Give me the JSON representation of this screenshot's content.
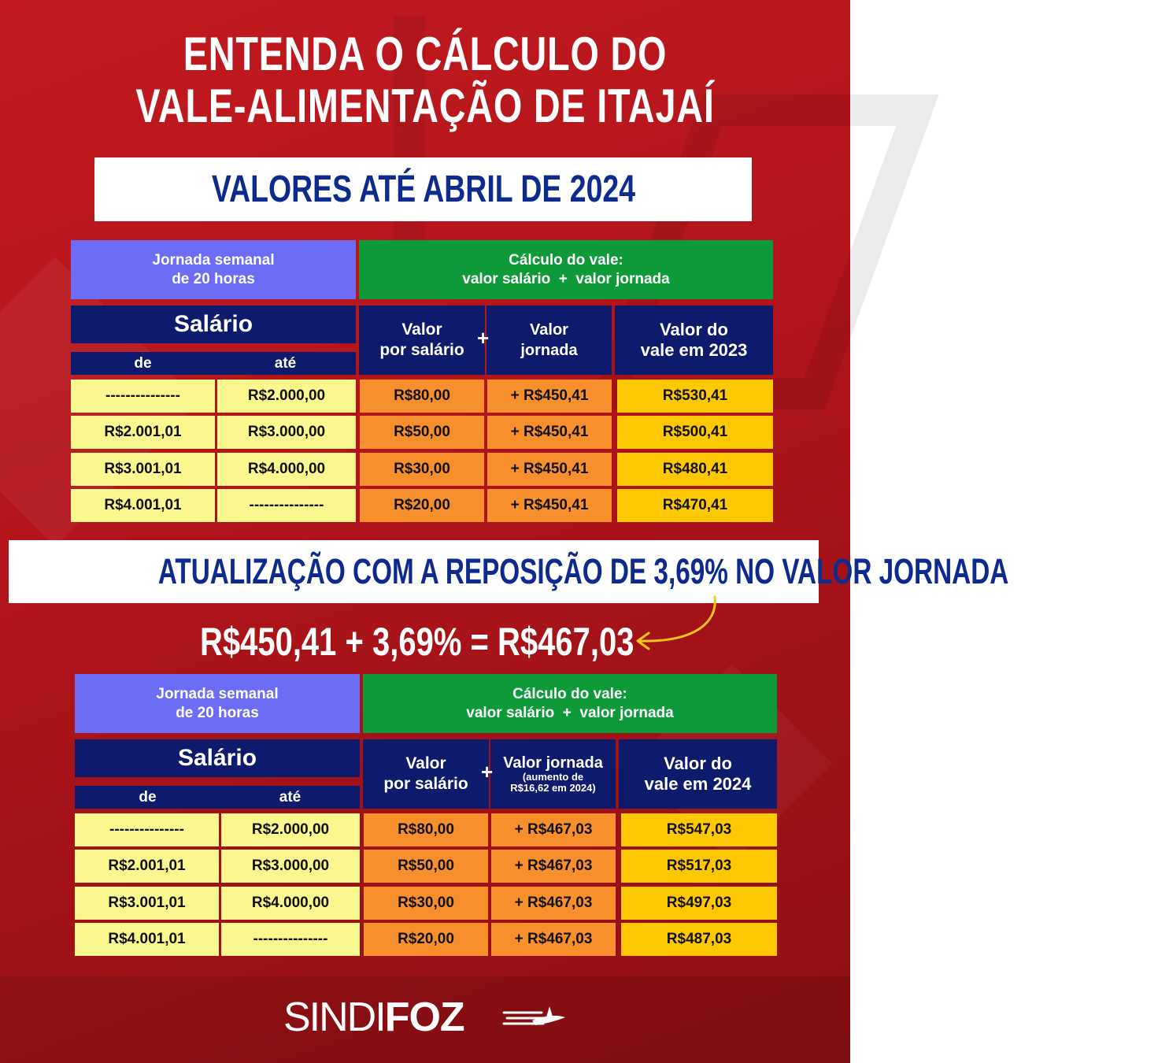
{
  "title": {
    "line1": "ENTENDA O CÁLCULO DO",
    "line2": "VALE-ALIMENTAÇÃO DE ITAJAÍ"
  },
  "banner1": "VALORES ATÉ ABRIL DE 2024",
  "banner2": "ATUALIZAÇÃO COM A REPOSIÇÃO DE 3,69% NO VALOR JORNADA",
  "formula": "R$450,41 + 3,69% = R$467,03",
  "table1": {
    "jornada_line1": "Jornada semanal",
    "jornada_line2": "de 20 horas",
    "calc_line1": "Cálculo do vale:",
    "calc_line2": "valor salário  +  valor jornada",
    "salario": "Salário",
    "de": "de",
    "ate": "até",
    "valor_salario_line1": "Valor",
    "valor_salario_line2": "por salário",
    "plus": "+",
    "valor_jornada_line1": "Valor",
    "valor_jornada_line2": "jornada",
    "valor_vale_line1": "Valor do",
    "valor_vale_line2": "vale em 2023",
    "rows": [
      {
        "de": "---------------",
        "ate": "R$2.000,00",
        "salario": "R$80,00",
        "jornada": "+ R$450,41",
        "vale": "R$530,41"
      },
      {
        "de": "R$2.001,01",
        "ate": "R$3.000,00",
        "salario": "R$50,00",
        "jornada": "+ R$450,41",
        "vale": "R$500,41"
      },
      {
        "de": "R$3.001,01",
        "ate": "R$4.000,00",
        "salario": "R$30,00",
        "jornada": "+ R$450,41",
        "vale": "R$480,41"
      },
      {
        "de": "R$4.001,01",
        "ate": "---------------",
        "salario": "R$20,00",
        "jornada": "+ R$450,41",
        "vale": "R$470,41"
      }
    ]
  },
  "table2": {
    "jornada_line1": "Jornada semanal",
    "jornada_line2": "de 20 horas",
    "calc_line1": "Cálculo do vale:",
    "calc_line2": "valor salário  +  valor jornada",
    "salario": "Salário",
    "de": "de",
    "ate": "até",
    "valor_salario_line1": "Valor",
    "valor_salario_line2": "por salário",
    "plus": "+",
    "valor_jornada_line1": "Valor jornada",
    "valor_jornada_line2": "(aumento de",
    "valor_jornada_line3": "R$16,62 em 2024)",
    "valor_vale_line1": "Valor do",
    "valor_vale_line2": "vale em 2024",
    "rows": [
      {
        "de": "---------------",
        "ate": "R$2.000,00",
        "salario": "R$80,00",
        "jornada": "+ R$467,03",
        "vale": "R$547,03"
      },
      {
        "de": "R$2.001,01",
        "ate": "R$3.000,00",
        "salario": "R$50,00",
        "jornada": "+ R$467,03",
        "vale": "R$517,03"
      },
      {
        "de": "R$3.001,01",
        "ate": "R$4.000,00",
        "salario": "R$30,00",
        "jornada": "+ R$467,03",
        "vale": "R$497,03"
      },
      {
        "de": "R$4.001,01",
        "ate": "---------------",
        "salario": "R$20,00",
        "jornada": "+ R$467,03",
        "vale": "R$487,03"
      }
    ]
  },
  "logo": {
    "part1": "SINDI",
    "part2": "FOZ"
  },
  "colors": {
    "background": "#b3151b",
    "banner_text": "#0d2b8e",
    "header_purple": "#6c6cf7",
    "header_green": "#0f9a3a",
    "header_navy": "#0e1a6b",
    "cell_yellow": "#fbf78f",
    "cell_orange": "#f7902c",
    "cell_gold": "#fdc800"
  },
  "icons": [
    "curved-arrow-icon",
    "airplane-icon"
  ]
}
